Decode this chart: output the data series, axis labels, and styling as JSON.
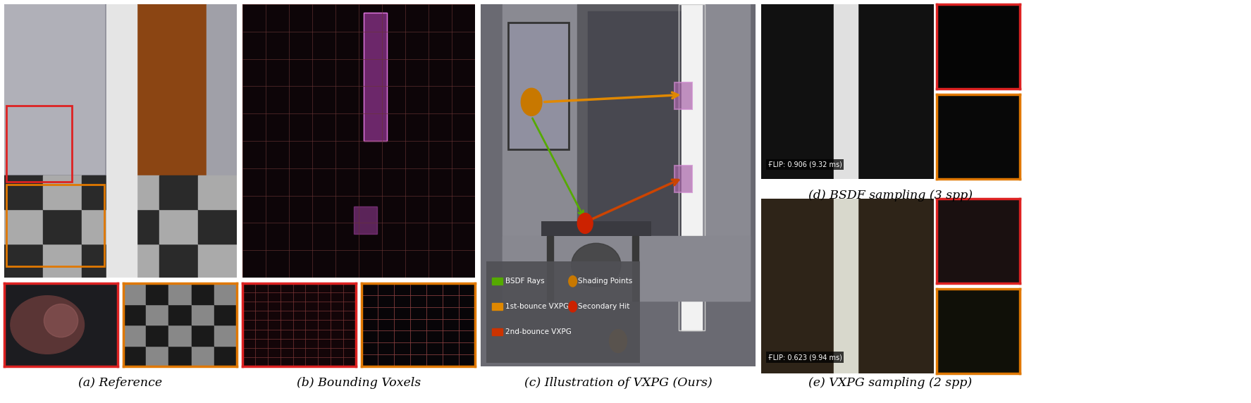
{
  "bg_color": "#ffffff",
  "captions": [
    "(a) Reference",
    "(b) Bounding Voxels",
    "(c) Illustration of VXPG (Ours)",
    "(d) BSDF sampling (3 spp)",
    "(e) VXPG sampling (2 spp)"
  ],
  "flip_bsdf": "ҒLIP: 0.906 (9.32 ms)",
  "flip_vxpg": "ҒLIP: 0.623 (9.94 ms)",
  "border_red": "#dd2222",
  "border_orange": "#e07800",
  "caption_fontsize": 12.5
}
